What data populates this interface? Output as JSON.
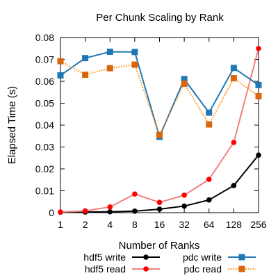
{
  "chart_data": {
    "type": "line",
    "title": "Per Chunk Scaling by Rank",
    "xlabel": "Number of Ranks",
    "ylabel": "Elapsed Time (s)",
    "x_scale": "log2",
    "categories": [
      "1",
      "2",
      "4",
      "8",
      "16",
      "32",
      "64",
      "128",
      "256"
    ],
    "x": [
      1,
      2,
      4,
      8,
      16,
      32,
      64,
      128,
      256
    ],
    "ylim": [
      0,
      0.08
    ],
    "yticks": [
      "0",
      "0.01",
      "0.02",
      "0.03",
      "0.04",
      "0.05",
      "0.06",
      "0.07",
      "0.08"
    ],
    "grid": false,
    "legend_position": "bottom",
    "series": [
      {
        "name": "hdf5 write",
        "color": "#000000",
        "marker": "circle",
        "line_style": "solid",
        "values": [
          0.0002,
          0.0003,
          0.0004,
          0.0007,
          0.0016,
          0.003,
          0.0058,
          0.0124,
          0.0263
        ]
      },
      {
        "name": "hdf5 read",
        "color": "#ff0000",
        "line_color": "#f08080",
        "marker": "circle",
        "line_style": "solid",
        "values": [
          0.0003,
          0.0008,
          0.0026,
          0.0085,
          0.0047,
          0.008,
          0.0152,
          0.0321,
          0.075
        ]
      },
      {
        "name": "pdc write",
        "color": "#1f77b4",
        "marker": "square",
        "line_style": "solid",
        "values": [
          0.0627,
          0.0706,
          0.0735,
          0.0734,
          0.0347,
          0.061,
          0.0457,
          0.0661,
          0.0583
        ]
      },
      {
        "name": "pdc read",
        "color": "#d9660d",
        "line_color": "#ff8c00",
        "marker": "square",
        "line_style": "dotted",
        "values": [
          0.0692,
          0.063,
          0.066,
          0.0676,
          0.0355,
          0.0589,
          0.0403,
          0.0614,
          0.0532
        ]
      }
    ]
  }
}
